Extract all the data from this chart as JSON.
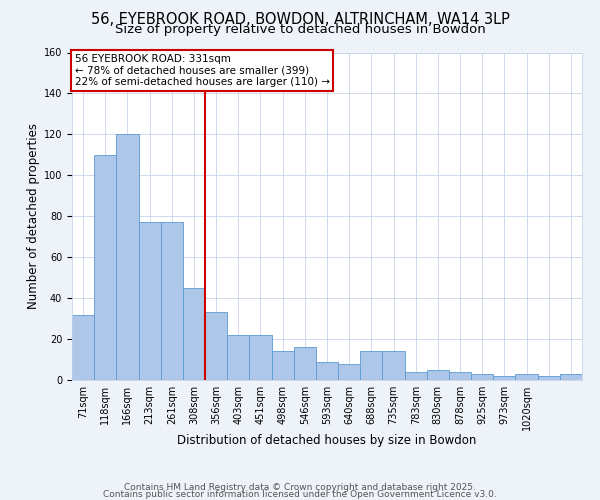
{
  "title": "56, EYEBROOK ROAD, BOWDON, ALTRINCHAM, WA14 3LP",
  "subtitle": "Size of property relative to detached houses in Bowdon",
  "xlabel": "Distribution of detached houses by size in Bowdon",
  "ylabel": "Number of detached properties",
  "bar_values": [
    32,
    110,
    120,
    77,
    77,
    45,
    33,
    22,
    22,
    14,
    16,
    9,
    8,
    14,
    14,
    4,
    5,
    4,
    3,
    2,
    3,
    2,
    3
  ],
  "x_tick_labels": [
    "71sqm",
    "118sqm",
    "166sqm",
    "213sqm",
    "261sqm",
    "308sqm",
    "356sqm",
    "403sqm",
    "451sqm",
    "498sqm",
    "546sqm",
    "593sqm",
    "640sqm",
    "688sqm",
    "735sqm",
    "783sqm",
    "830sqm",
    "878sqm",
    "925sqm",
    "973sqm",
    "1020sqm",
    "",
    ""
  ],
  "bar_color": "#aec6e8",
  "bar_edge_color": "#5b9bd5",
  "annotation_text": "56 EYEBROOK ROAD: 331sqm\n← 78% of detached houses are smaller (399)\n22% of semi-detached houses are larger (110) →",
  "annotation_box_color": "#ffffff",
  "annotation_border_color": "#cc0000",
  "ylim": [
    0,
    160
  ],
  "yticks": [
    0,
    20,
    40,
    60,
    80,
    100,
    120,
    140,
    160
  ],
  "footnote1": "Contains HM Land Registry data © Crown copyright and database right 2025.",
  "footnote2": "Contains public sector information licensed under the Open Government Licence v3.0.",
  "bg_color": "#eef2f9",
  "plot_bg_color": "#ffffff",
  "grid_color": "#c8d4e8",
  "title_fontsize": 10.5,
  "subtitle_fontsize": 9.5,
  "label_fontsize": 8.5,
  "tick_fontsize": 7,
  "annot_fontsize": 7.5,
  "footnote_fontsize": 6.5
}
